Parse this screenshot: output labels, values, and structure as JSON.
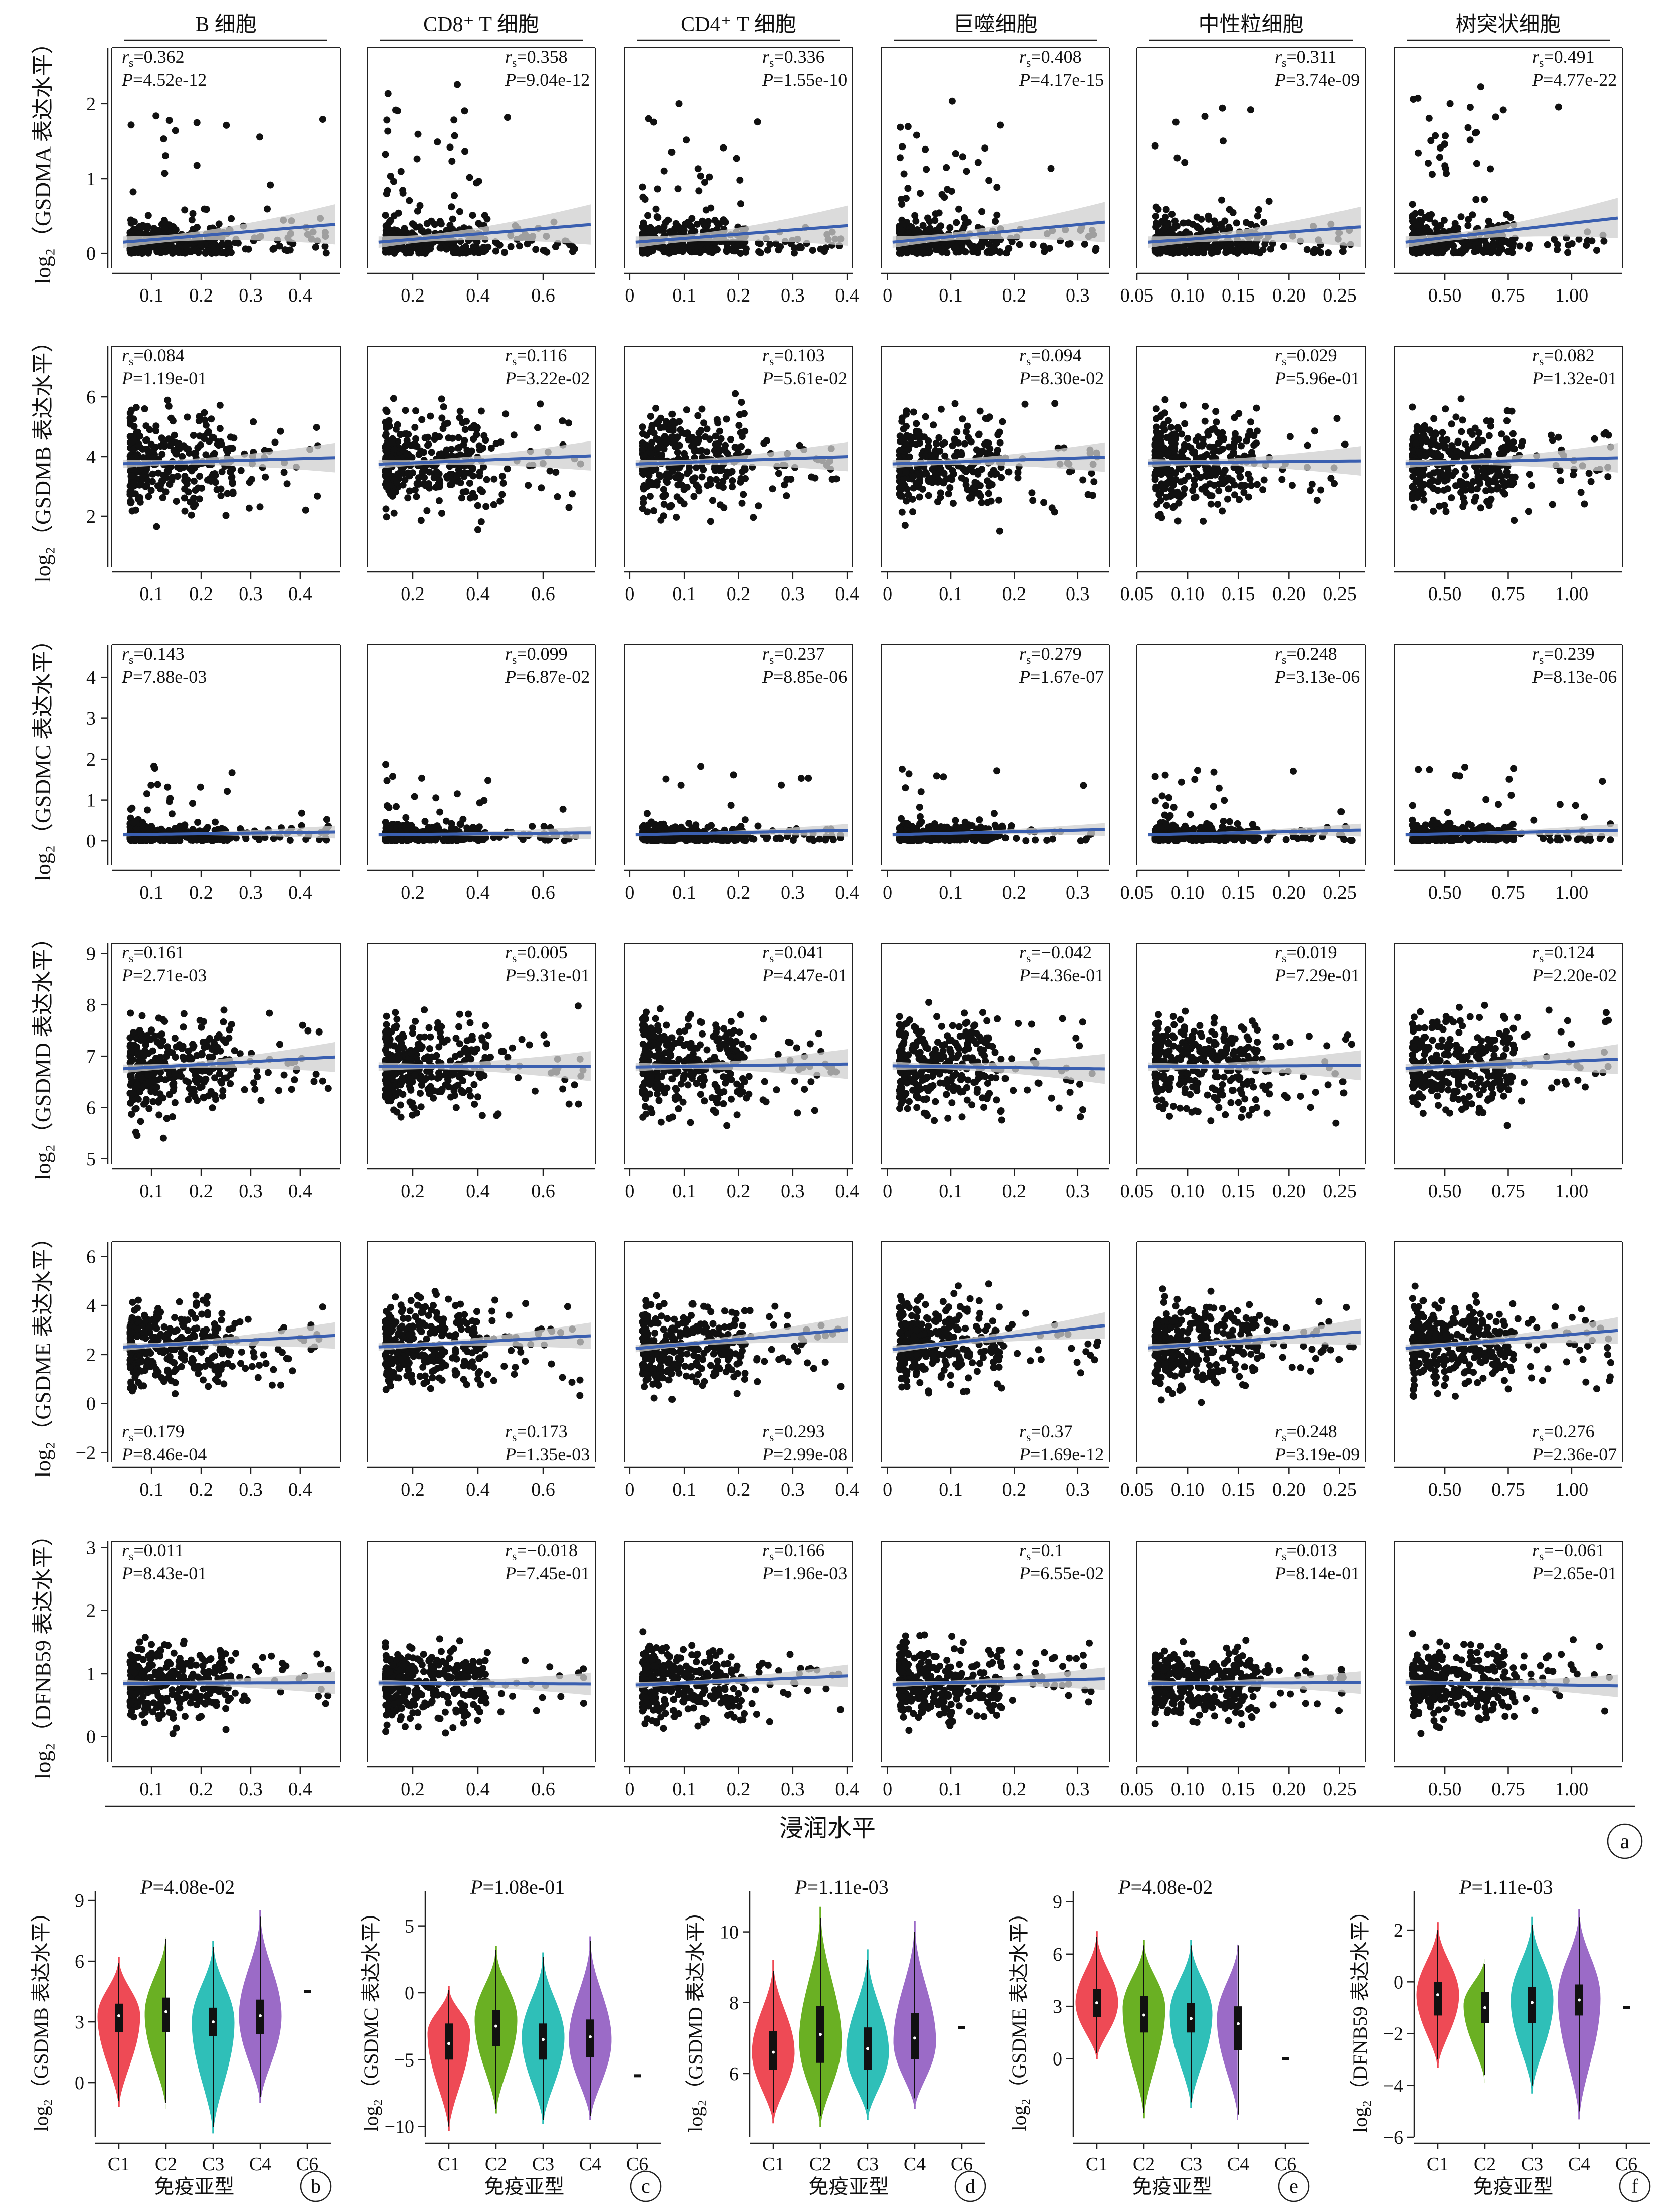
{
  "colors": {
    "point": "#111111",
    "curve": "#3a5fb0",
    "band": "#cfcfcf",
    "violin": [
      "#ee4a55",
      "#6ab023",
      "#2fbfb8",
      "#9b6bc7"
    ]
  },
  "cell_types": [
    "B 细胞",
    "CD8⁺ T 细胞",
    "CD4⁺ T 细胞",
    "巨噬细胞",
    "中性粒细胞",
    "树突状细胞"
  ],
  "x_axes": [
    {
      "ticks": [
        0.1,
        0.2,
        0.3,
        0.4
      ],
      "labels": [
        "0.1",
        "0.2",
        "0.3",
        "0.4"
      ],
      "lim": [
        0.02,
        0.48
      ]
    },
    {
      "ticks": [
        0.2,
        0.4,
        0.6
      ],
      "labels": [
        "0.2",
        "0.4",
        "0.6"
      ],
      "lim": [
        0.06,
        0.76
      ]
    },
    {
      "ticks": [
        0,
        0.1,
        0.2,
        0.3,
        0.4
      ],
      "labels": [
        "0",
        "0.1",
        "0.2",
        "0.3",
        "0.4"
      ],
      "lim": [
        -0.01,
        0.41
      ]
    },
    {
      "ticks": [
        0,
        0.1,
        0.2,
        0.3
      ],
      "labels": [
        "0",
        "0.1",
        "0.2",
        "0.3"
      ],
      "lim": [
        -0.01,
        0.35
      ]
    },
    {
      "ticks": [
        0.05,
        0.1,
        0.15,
        0.2,
        0.25
      ],
      "labels": [
        "0.05",
        "0.10",
        "0.15",
        "0.20",
        "0.25"
      ],
      "lim": [
        0.05,
        0.275
      ]
    },
    {
      "ticks": [
        0.5,
        0.75,
        1.0
      ],
      "labels": [
        "0.50",
        "0.75",
        "1.00"
      ],
      "lim": [
        0.3,
        1.2
      ]
    }
  ],
  "x_axis_title": "浸润水平",
  "panel_a_label": "a",
  "chart_data": [
    {
      "type": "scatter",
      "panel": "a",
      "rows": [
        {
          "ylabel": "log₂（GSDMA 表达水平）",
          "yticks": [
            0,
            1,
            2
          ],
          "ylim": [
            -0.2,
            2.75
          ],
          "center": 0.3,
          "spread": 0.6,
          "stat_pos": "top",
          "stats": [
            {
              "r": "0.362",
              "p": "4.52e-12"
            },
            {
              "r": "0.358",
              "p": "9.04e-12"
            },
            {
              "r": "0.336",
              "p": "1.55e-10"
            },
            {
              "r": "0.408",
              "p": "4.17e-15"
            },
            {
              "r": "0.311",
              "p": "3.74e-09"
            },
            {
              "r": "0.491",
              "p": "4.77e-22"
            }
          ]
        },
        {
          "ylabel": "log₂（GSDMB 表达水平）",
          "yticks": [
            2,
            4,
            6
          ],
          "ylim": [
            0.3,
            7.7
          ],
          "center": 3.8,
          "spread": 1.1,
          "stat_pos": "top",
          "stats": [
            {
              "r": "0.084",
              "p": "1.19e-01"
            },
            {
              "r": "0.116",
              "p": "3.22e-02"
            },
            {
              "r": "0.103",
              "p": "5.61e-02"
            },
            {
              "r": "0.094",
              "p": "8.30e-02"
            },
            {
              "r": "0.029",
              "p": "5.96e-01"
            },
            {
              "r": "0.082",
              "p": "1.32e-01"
            }
          ]
        },
        {
          "ylabel": "log₂（GSDMC 表达水平）",
          "yticks": [
            0,
            1,
            2,
            3,
            4
          ],
          "ylim": [
            -0.6,
            4.8
          ],
          "center": 0.2,
          "spread": 0.35,
          "stat_pos": "top",
          "stats": [
            {
              "r": "0.143",
              "p": "7.88e-03"
            },
            {
              "r": "0.099",
              "p": "6.87e-02"
            },
            {
              "r": "0.237",
              "p": "8.85e-06"
            },
            {
              "r": "0.279",
              "p": "1.67e-07"
            },
            {
              "r": "0.248",
              "p": "3.13e-06"
            },
            {
              "r": "0.239",
              "p": "8.13e-06"
            }
          ]
        },
        {
          "ylabel": "log₂（GSDMD 表达水平）",
          "yticks": [
            5,
            6,
            7,
            8,
            9
          ],
          "ylim": [
            4.9,
            9.2
          ],
          "center": 6.8,
          "spread": 0.65,
          "stat_pos": "top",
          "stats": [
            {
              "r": "0.161",
              "p": "2.71e-03"
            },
            {
              "r": "0.005",
              "p": "9.31e-01"
            },
            {
              "r": "0.041",
              "p": "4.47e-01"
            },
            {
              "r": "−0.042",
              "p": "4.36e-01"
            },
            {
              "r": "0.019",
              "p": "7.29e-01"
            },
            {
              "r": "0.124",
              "p": "2.20e-02"
            }
          ]
        },
        {
          "ylabel": "log₂（GSDME 表达水平）",
          "yticks": [
            -2,
            0,
            2,
            4,
            6
          ],
          "ylim": [
            -2.4,
            6.6
          ],
          "center": 2.4,
          "spread": 1.2,
          "stat_pos": "bottom",
          "stats": [
            {
              "r": "0.179",
              "p": "8.46e-04"
            },
            {
              "r": "0.173",
              "p": "1.35e-03"
            },
            {
              "r": "0.293",
              "p": "2.99e-08"
            },
            {
              "r": "0.37",
              "p": "1.69e-12"
            },
            {
              "r": "0.248",
              "p": "3.19e-09"
            },
            {
              "r": "0.276",
              "p": "2.36e-07"
            }
          ]
        },
        {
          "ylabel": "log₂（DFNB59 表达水平）",
          "yticks": [
            0,
            1,
            2,
            3
          ],
          "ylim": [
            -0.4,
            3.1
          ],
          "center": 0.85,
          "spread": 0.4,
          "stat_pos": "top",
          "stats": [
            {
              "r": "0.011",
              "p": "8.43e-01"
            },
            {
              "r": "−0.018",
              "p": "7.45e-01"
            },
            {
              "r": "0.166",
              "p": "1.96e-03"
            },
            {
              "r": "0.1",
              "p": "6.55e-02"
            },
            {
              "r": "0.013",
              "p": "8.14e-01"
            },
            {
              "r": "−0.061",
              "p": "2.65e-01"
            }
          ]
        }
      ]
    },
    {
      "type": "violin",
      "panel": "b",
      "ylabel": "log₂（GSDMB 表达水平）",
      "p_text": "4.08e-02",
      "yticks": [
        0,
        3,
        6,
        9
      ],
      "ylim": [
        -2.7,
        9.2
      ],
      "categories": [
        "C1",
        "C2",
        "C3",
        "C4",
        "C6"
      ],
      "xlabel": "免疫亚型",
      "groups": [
        {
          "min": -1.2,
          "q1": 2.5,
          "med": 3.3,
          "q3": 3.9,
          "max": 6.2,
          "mode": 3.3
        },
        {
          "min": -1.3,
          "q1": 2.5,
          "med": 3.5,
          "q3": 4.2,
          "max": 7.4,
          "mode": 3.4
        },
        {
          "min": -2.5,
          "q1": 2.3,
          "med": 3.0,
          "q3": 3.7,
          "max": 7.0,
          "mode": 3.0
        },
        {
          "min": -1.0,
          "q1": 2.4,
          "med": 3.3,
          "q3": 4.1,
          "max": 8.5,
          "mode": 3.3
        },
        {
          "single": 4.5
        }
      ]
    },
    {
      "type": "violin",
      "panel": "c",
      "ylabel": "log₂（GSDMC 表达水平）",
      "p_text": "1.08e-01",
      "yticks": [
        -10,
        -5,
        0,
        5
      ],
      "ylim": [
        -10.8,
        7.2
      ],
      "categories": [
        "C1",
        "C2",
        "C3",
        "C4",
        "C6"
      ],
      "xlabel": "免疫亚型",
      "groups": [
        {
          "min": -10.3,
          "q1": -5.0,
          "med": -3.8,
          "q3": -2.3,
          "max": 0.5,
          "mode": -3.0
        },
        {
          "min": -9.0,
          "q1": -4.0,
          "med": -2.5,
          "q3": -1.3,
          "max": 3.5,
          "mode": -2.0
        },
        {
          "min": -9.8,
          "q1": -5.0,
          "med": -3.5,
          "q3": -2.3,
          "max": 3.0,
          "mode": -3.3
        },
        {
          "min": -9.5,
          "q1": -4.8,
          "med": -3.3,
          "q3": -2.0,
          "max": 4.2,
          "mode": -3.5
        },
        {
          "single": -6.2
        }
      ]
    },
    {
      "type": "violin",
      "panel": "d",
      "ylabel": "log₂（GSDMD 表达水平）",
      "p_text": "1.11e-03",
      "yticks": [
        6,
        8,
        10
      ],
      "ylim": [
        4.2,
        11.0
      ],
      "categories": [
        "C1",
        "C2",
        "C3",
        "C4",
        "C6"
      ],
      "xlabel": "免疫亚型",
      "groups": [
        {
          "min": 4.6,
          "q1": 6.1,
          "med": 6.6,
          "q3": 7.2,
          "max": 9.2,
          "mode": 6.6
        },
        {
          "min": 4.5,
          "q1": 6.3,
          "med": 7.1,
          "q3": 7.9,
          "max": 10.7,
          "mode": 6.9
        },
        {
          "min": 4.7,
          "q1": 6.1,
          "med": 6.7,
          "q3": 7.3,
          "max": 9.5,
          "mode": 6.6
        },
        {
          "min": 5.0,
          "q1": 6.4,
          "med": 7.0,
          "q3": 7.7,
          "max": 10.3,
          "mode": 6.9
        },
        {
          "single": 7.3
        }
      ]
    },
    {
      "type": "violin",
      "panel": "e",
      "ylabel": "log₂（GSDME 表达水平）",
      "p_text": "4.08e-02",
      "yticks": [
        0,
        3,
        6,
        9
      ],
      "ylim": [
        -4.5,
        9.3
      ],
      "categories": [
        "C1",
        "C2",
        "C3",
        "C4",
        "C6"
      ],
      "xlabel": "免疫亚型",
      "groups": [
        {
          "min": 0.0,
          "q1": 2.4,
          "med": 3.2,
          "q3": 4.0,
          "max": 7.3,
          "mode": 3.2
        },
        {
          "min": -3.4,
          "q1": 1.5,
          "med": 2.5,
          "q3": 3.6,
          "max": 6.8,
          "mode": 2.9
        },
        {
          "min": -2.8,
          "q1": 1.5,
          "med": 2.3,
          "q3": 3.2,
          "max": 6.8,
          "mode": 2.6
        },
        {
          "min": -3.5,
          "q1": 0.5,
          "med": 2.0,
          "q3": 3.0,
          "max": 6.8,
          "mode": 2.3
        },
        {
          "single": 0.0
        }
      ]
    },
    {
      "type": "violin",
      "panel": "f",
      "ylabel": "log₂（DFNB59 表达水平）",
      "p_text": "1.11e-03",
      "yticks": [
        -6,
        -4,
        -2,
        0,
        2
      ],
      "ylim": [
        -6.0,
        3.3
      ],
      "categories": [
        "C1",
        "C2",
        "C3",
        "C4",
        "C6"
      ],
      "xlabel": "免疫亚型",
      "groups": [
        {
          "min": -3.3,
          "q1": -1.3,
          "med": -0.5,
          "q3": 0.0,
          "max": 2.3,
          "mode": -0.5
        },
        {
          "min": -3.9,
          "q1": -1.6,
          "med": -1.0,
          "q3": -0.4,
          "max": 1.0,
          "mode": -0.9
        },
        {
          "min": -4.3,
          "q1": -1.6,
          "med": -0.8,
          "q3": -0.2,
          "max": 2.5,
          "mode": -0.7
        },
        {
          "min": -5.3,
          "q1": -1.3,
          "med": -0.7,
          "q3": -0.1,
          "max": 2.8,
          "mode": -0.6
        },
        {
          "single": -1.0
        }
      ]
    }
  ]
}
